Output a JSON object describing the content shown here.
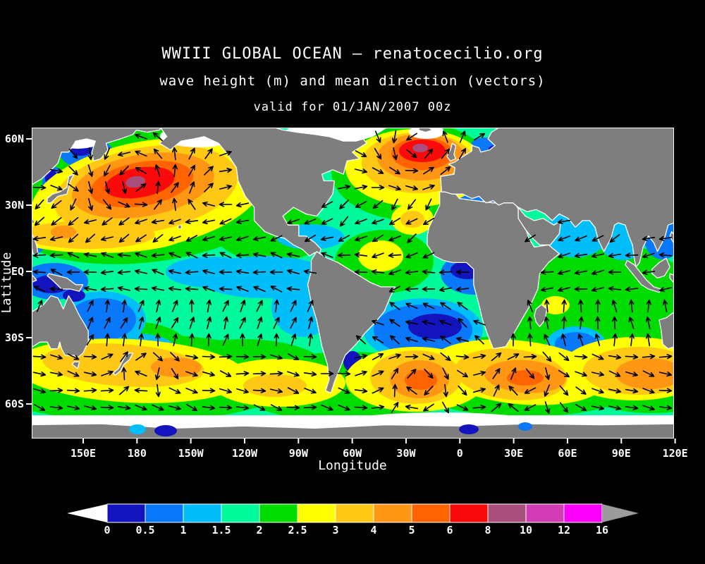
{
  "header": {
    "title": "WWIII GLOBAL OCEAN — renatocecilio.org",
    "subtitle": "wave height (m) and mean direction (vectors)",
    "valid_line": "valid for 01/JAN/2007 00z"
  },
  "chart_data": {
    "type": "heatmap",
    "projection": "global equirectangular, Pacific-left (left edge ~120E, wrapping east to 120E)",
    "title": "WWIII GLOBAL OCEAN — renatocecilio.org",
    "subtitle": "wave height (m) and mean direction (vectors)",
    "valid": "valid for 01/JAN/2007 00z",
    "xlabel": "Longitude",
    "ylabel": "Latitude",
    "x_ticks": [
      "150E",
      "180",
      "150W",
      "120W",
      "90W",
      "60W",
      "30W",
      "0",
      "30E",
      "60E",
      "90E",
      "120E"
    ],
    "y_ticks": [
      "60N",
      "30N",
      "EQ",
      "30S",
      "60S"
    ],
    "grid": false,
    "colorbar": {
      "units": "m",
      "tick_labels": [
        "0",
        "0.5",
        "1",
        "1.5",
        "2",
        "2.5",
        "3",
        "4",
        "5",
        "6",
        "8",
        "10",
        "12",
        "16"
      ],
      "levels": [
        0,
        0.5,
        1,
        1.5,
        2,
        2.5,
        3,
        4,
        5,
        6,
        8,
        10,
        12,
        16
      ],
      "colors": [
        "#1414be",
        "#0a78fa",
        "#00befa",
        "#00fa9b",
        "#00dc00",
        "#ffff00",
        "#ffc814",
        "#ff9614",
        "#ff6400",
        "#fa0a0a",
        "#a84f7e",
        "#d23cb4",
        "#fa00fa"
      ],
      "below_arrow_color": "#ffffff",
      "above_arrow_color": "#9b9b9b"
    },
    "map_colors": {
      "land": "#7e7e7e",
      "coastline": "#ffffff",
      "sea_ice": "#ffffff",
      "frame": "#ffffff",
      "background": "#000000",
      "vector_arrows": "#000000"
    },
    "vectors": {
      "symbol": "black arrow grid over ocean",
      "meaning": "mean wave direction"
    },
    "features": [
      {
        "name": "North Pacific storm",
        "lat": 38,
        "lon": -178,
        "peak_band_m": "8-10"
      },
      {
        "name": "North Atlantic storm (S of Iceland)",
        "lat": 57,
        "lon": -28,
        "peak_band_m": "8-10"
      },
      {
        "name": "South Atlantic storm",
        "lat": -55,
        "lon": -25,
        "peak_band_m": "5-6"
      },
      {
        "name": "SW Indian Ocean storm (SE of South Africa)",
        "lat": -47,
        "lon": 45,
        "peak_band_m": "5-6"
      },
      {
        "name": "South Indian Ocean storm (SW of Australia)",
        "lat": -49,
        "lon": 95,
        "peak_band_m": "5-6"
      },
      {
        "name": "South Pacific swath",
        "lat": -52,
        "lon": -140,
        "peak_band_m": "4-5"
      },
      {
        "name": "NE trade-wind swath (N of Hawaii band)",
        "lat": 18,
        "lon": 160,
        "peak_band_m": "3-4"
      },
      {
        "name": "calm sheltered seas (Indonesia, Mediterranean, Gulf of Guinea, Argentine basin)",
        "peak_band_m": "0-1"
      }
    ]
  }
}
